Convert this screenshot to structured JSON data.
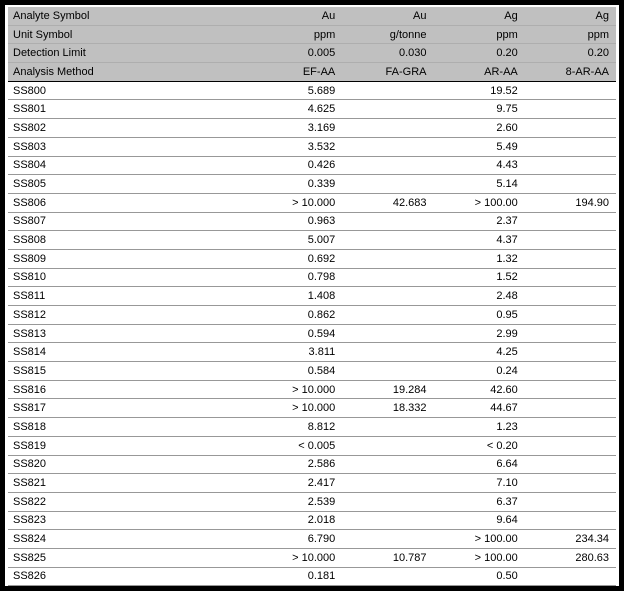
{
  "colors": {
    "frame": "#000000",
    "header_bg": "#c0c0c0",
    "grid_line": "#989898",
    "header_divider": "#aeaeae",
    "header_bottom_line": "#000000",
    "text": "#000000",
    "background": "#ffffff"
  },
  "table": {
    "header_rows": [
      {
        "label": "Analyte Symbol",
        "values": [
          "Au",
          "Au",
          "Ag",
          "Ag"
        ]
      },
      {
        "label": "Unit Symbol",
        "values": [
          "ppm",
          "g/tonne",
          "ppm",
          "ppm"
        ]
      },
      {
        "label": "Detection Limit",
        "values": [
          "0.005",
          "0.030",
          "0.20",
          "0.20"
        ]
      },
      {
        "label": "Analysis Method",
        "values": [
          "EF-AA",
          "FA-GRA",
          "AR-AA",
          "8-AR-AA"
        ]
      }
    ],
    "rows": [
      {
        "sample": "SS800",
        "values": [
          "5.689",
          "",
          "19.52",
          ""
        ]
      },
      {
        "sample": "SS801",
        "values": [
          "4.625",
          "",
          "9.75",
          ""
        ]
      },
      {
        "sample": "SS802",
        "values": [
          "3.169",
          "",
          "2.60",
          ""
        ]
      },
      {
        "sample": "SS803",
        "values": [
          "3.532",
          "",
          "5.49",
          ""
        ]
      },
      {
        "sample": "SS804",
        "values": [
          "0.426",
          "",
          "4.43",
          ""
        ]
      },
      {
        "sample": "SS805",
        "values": [
          "0.339",
          "",
          "5.14",
          ""
        ]
      },
      {
        "sample": "SS806",
        "values": [
          "> 10.000",
          "42.683",
          "> 100.00",
          "194.90"
        ]
      },
      {
        "sample": "SS807",
        "values": [
          "0.963",
          "",
          "2.37",
          ""
        ]
      },
      {
        "sample": "SS808",
        "values": [
          "5.007",
          "",
          "4.37",
          ""
        ]
      },
      {
        "sample": "SS809",
        "values": [
          "0.692",
          "",
          "1.32",
          ""
        ]
      },
      {
        "sample": "SS810",
        "values": [
          "0.798",
          "",
          "1.52",
          ""
        ]
      },
      {
        "sample": "SS811",
        "values": [
          "1.408",
          "",
          "2.48",
          ""
        ]
      },
      {
        "sample": "SS812",
        "values": [
          "0.862",
          "",
          "0.95",
          ""
        ]
      },
      {
        "sample": "SS813",
        "values": [
          "0.594",
          "",
          "2.99",
          ""
        ]
      },
      {
        "sample": "SS814",
        "values": [
          "3.811",
          "",
          "4.25",
          ""
        ]
      },
      {
        "sample": "SS815",
        "values": [
          "0.584",
          "",
          "0.24",
          ""
        ]
      },
      {
        "sample": "SS816",
        "values": [
          "> 10.000",
          "19.284",
          "42.60",
          ""
        ]
      },
      {
        "sample": "SS817",
        "values": [
          "> 10.000",
          "18.332",
          "44.67",
          ""
        ]
      },
      {
        "sample": "SS818",
        "values": [
          "8.812",
          "",
          "1.23",
          ""
        ]
      },
      {
        "sample": "SS819",
        "values": [
          "< 0.005",
          "",
          "< 0.20",
          ""
        ]
      },
      {
        "sample": "SS820",
        "values": [
          "2.586",
          "",
          "6.64",
          ""
        ]
      },
      {
        "sample": "SS821",
        "values": [
          "2.417",
          "",
          "7.10",
          ""
        ]
      },
      {
        "sample": "SS822",
        "values": [
          "2.539",
          "",
          "6.37",
          ""
        ]
      },
      {
        "sample": "SS823",
        "values": [
          "2.018",
          "",
          "9.64",
          ""
        ]
      },
      {
        "sample": "SS824",
        "values": [
          "6.790",
          "",
          "> 100.00",
          "234.34"
        ]
      },
      {
        "sample": "SS825",
        "values": [
          "> 10.000",
          "10.787",
          "> 100.00",
          "280.63"
        ]
      },
      {
        "sample": "SS826",
        "values": [
          "0.181",
          "",
          "0.50",
          ""
        ]
      }
    ]
  }
}
